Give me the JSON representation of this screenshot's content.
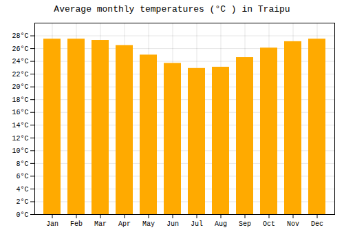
{
  "chart_data": {
    "type": "bar",
    "title": "Average monthly temperatures (°C ) in Traipu",
    "categories": [
      "Jan",
      "Feb",
      "Mar",
      "Apr",
      "May",
      "Jun",
      "Jul",
      "Aug",
      "Sep",
      "Oct",
      "Nov",
      "Dec"
    ],
    "values": [
      27.5,
      27.5,
      27.3,
      26.5,
      25.0,
      23.7,
      22.9,
      23.1,
      24.6,
      26.1,
      27.1,
      27.5
    ],
    "color": "#FFAA00",
    "ylim": [
      0,
      30
    ],
    "yticks": [
      {
        "value": 0,
        "label": "0°C"
      },
      {
        "value": 2,
        "label": "2°C"
      },
      {
        "value": 4,
        "label": "4°C"
      },
      {
        "value": 6,
        "label": "6°C"
      },
      {
        "value": 8,
        "label": "8°C"
      },
      {
        "value": 10,
        "label": "10°C"
      },
      {
        "value": 12,
        "label": "12°C"
      },
      {
        "value": 14,
        "label": "14°C"
      },
      {
        "value": 16,
        "label": "16°C"
      },
      {
        "value": 18,
        "label": "18°C"
      },
      {
        "value": 20,
        "label": "20°C"
      },
      {
        "value": 22,
        "label": "22°C"
      },
      {
        "value": 24,
        "label": "24°C"
      },
      {
        "value": 26,
        "label": "26°C"
      },
      {
        "value": 28,
        "label": "28°C"
      }
    ],
    "grid": true
  }
}
